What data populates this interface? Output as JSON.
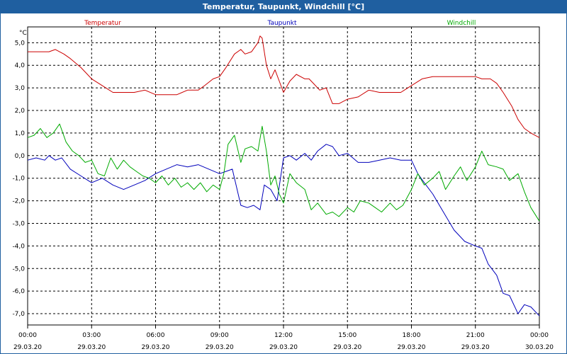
{
  "title": "Temperatur, Taupunkt, Windchill [°C]",
  "chart_data": {
    "type": "line",
    "title": "Temperatur, Taupunkt, Windchill [°C]",
    "ylabel": "°C",
    "ylim": [
      -7.5,
      5.7
    ],
    "xlim": [
      0,
      24
    ],
    "y_ticks": [
      5,
      4,
      3,
      2,
      1,
      0,
      -1,
      -2,
      -3,
      -4,
      -5,
      -6,
      -7
    ],
    "y_tick_labels": [
      "5,0",
      "4,0",
      "3,0",
      "2,0",
      "1,0",
      "0,0",
      "-1,0",
      "-2,0",
      "-3,0",
      "-4,0",
      "-5,0",
      "-6,0",
      "-7,0"
    ],
    "x_ticks": [
      0,
      3,
      6,
      9,
      12,
      15,
      18,
      21,
      24
    ],
    "x_tick_times": [
      "00:00",
      "03:00",
      "06:00",
      "09:00",
      "12:00",
      "15:00",
      "18:00",
      "21:00",
      "00:00"
    ],
    "x_tick_dates": [
      "29.03.20",
      "29.03.20",
      "29.03.20",
      "29.03.20",
      "29.03.20",
      "29.03.20",
      "29.03.20",
      "29.03.20",
      "30.03.20"
    ],
    "grid": true,
    "series": [
      {
        "name": "Temperatur",
        "color": "#cc0000",
        "x": [
          0,
          0.5,
          1,
          1.3,
          1.7,
          2,
          2.5,
          3,
          3.5,
          4,
          4.5,
          5,
          5.5,
          6,
          6.5,
          7,
          7.5,
          8,
          8.3,
          8.7,
          9,
          9.3,
          9.7,
          10,
          10.2,
          10.5,
          10.8,
          10.9,
          11,
          11.2,
          11.4,
          11.6,
          11.8,
          12,
          12.3,
          12.6,
          13,
          13.2,
          13.5,
          13.7,
          14,
          14.3,
          14.6,
          15,
          15.5,
          16,
          16.5,
          17,
          17.5,
          18,
          18.5,
          19,
          19.5,
          20,
          20.5,
          21,
          21.3,
          21.7,
          22,
          22.3,
          22.7,
          23,
          23.3,
          23.6,
          24
        ],
        "values": [
          4.6,
          4.6,
          4.6,
          4.7,
          4.5,
          4.3,
          3.9,
          3.4,
          3.1,
          2.8,
          2.8,
          2.8,
          2.9,
          2.7,
          2.7,
          2.7,
          2.9,
          2.9,
          3.1,
          3.4,
          3.5,
          3.9,
          4.5,
          4.7,
          4.5,
          4.6,
          5.0,
          5.3,
          5.2,
          4.0,
          3.4,
          3.8,
          3.3,
          2.8,
          3.3,
          3.6,
          3.4,
          3.4,
          3.1,
          2.9,
          3.0,
          2.3,
          2.3,
          2.5,
          2.6,
          2.9,
          2.8,
          2.8,
          2.8,
          3.1,
          3.4,
          3.5,
          3.5,
          3.5,
          3.5,
          3.5,
          3.4,
          3.4,
          3.2,
          2.8,
          2.2,
          1.6,
          1.2,
          1.0,
          0.8
        ]
      },
      {
        "name": "Taupunkt",
        "color": "#0000bb",
        "x": [
          0,
          0.4,
          0.8,
          1,
          1.3,
          1.6,
          2,
          2.5,
          3,
          3.5,
          4,
          4.5,
          5,
          5.5,
          6,
          6.5,
          7,
          7.5,
          8,
          8.5,
          9,
          9.3,
          9.6,
          10,
          10.3,
          10.6,
          10.9,
          11.1,
          11.4,
          11.7,
          12,
          12.3,
          12.6,
          13,
          13.3,
          13.6,
          14,
          14.3,
          14.6,
          15,
          15.5,
          16,
          16.5,
          17,
          17.5,
          18,
          18.3,
          18.6,
          19,
          19.5,
          20,
          20.5,
          21,
          21.3,
          21.6,
          22,
          22.3,
          22.6,
          23,
          23.3,
          23.6,
          24
        ],
        "values": [
          -0.2,
          -0.1,
          -0.2,
          0.0,
          -0.2,
          -0.1,
          -0.6,
          -0.9,
          -1.2,
          -1.0,
          -1.3,
          -1.5,
          -1.3,
          -1.1,
          -0.8,
          -0.6,
          -0.4,
          -0.5,
          -0.4,
          -0.6,
          -0.8,
          -0.7,
          -0.6,
          -2.2,
          -2.3,
          -2.2,
          -2.4,
          -1.3,
          -1.5,
          -2.0,
          -0.1,
          0.0,
          -0.2,
          0.1,
          -0.2,
          0.2,
          0.5,
          0.4,
          0.0,
          0.1,
          -0.3,
          -0.3,
          -0.2,
          -0.1,
          -0.2,
          -0.2,
          -0.8,
          -1.2,
          -1.7,
          -2.5,
          -3.3,
          -3.8,
          -4.0,
          -4.1,
          -4.8,
          -5.3,
          -6.1,
          -6.2,
          -7.0,
          -6.6,
          -6.7,
          -7.1
        ]
      },
      {
        "name": "Windchill",
        "color": "#00aa00",
        "x": [
          0,
          0.3,
          0.6,
          0.9,
          1.2,
          1.5,
          1.8,
          2.1,
          2.4,
          2.7,
          3,
          3.3,
          3.6,
          3.9,
          4.2,
          4.5,
          4.8,
          5.1,
          5.4,
          5.7,
          6,
          6.3,
          6.6,
          6.9,
          7.2,
          7.5,
          7.8,
          8.1,
          8.4,
          8.7,
          9,
          9.2,
          9.4,
          9.7,
          10,
          10.2,
          10.5,
          10.8,
          11,
          11.2,
          11.4,
          11.6,
          11.8,
          12,
          12.3,
          12.6,
          13,
          13.3,
          13.6,
          14,
          14.3,
          14.6,
          15,
          15.3,
          15.6,
          16,
          16.3,
          16.6,
          17,
          17.3,
          17.6,
          18,
          18.3,
          18.6,
          19,
          19.3,
          19.6,
          20,
          20.3,
          20.6,
          21,
          21.3,
          21.6,
          22,
          22.3,
          22.6,
          23,
          23.3,
          23.6,
          24
        ],
        "values": [
          0.8,
          0.9,
          1.2,
          0.8,
          1.0,
          1.4,
          0.6,
          0.2,
          0.0,
          -0.3,
          -0.2,
          -0.8,
          -0.9,
          -0.1,
          -0.6,
          -0.2,
          -0.5,
          -0.7,
          -0.9,
          -1.0,
          -1.2,
          -0.9,
          -1.3,
          -1.0,
          -1.4,
          -1.2,
          -1.5,
          -1.2,
          -1.6,
          -1.3,
          -1.5,
          -0.8,
          0.5,
          0.9,
          -0.3,
          0.3,
          0.4,
          0.2,
          1.3,
          0.2,
          -1.3,
          -0.9,
          -1.7,
          -2.1,
          -0.8,
          -1.2,
          -1.5,
          -2.4,
          -2.1,
          -2.6,
          -2.5,
          -2.7,
          -2.3,
          -2.5,
          -2.0,
          -2.1,
          -2.3,
          -2.5,
          -2.1,
          -2.4,
          -2.2,
          -1.5,
          -0.8,
          -1.3,
          -1.0,
          -0.7,
          -1.5,
          -0.9,
          -0.5,
          -1.1,
          -0.5,
          0.2,
          -0.4,
          -0.5,
          -0.6,
          -1.1,
          -0.8,
          -1.6,
          -2.3,
          -2.9
        ]
      }
    ]
  }
}
